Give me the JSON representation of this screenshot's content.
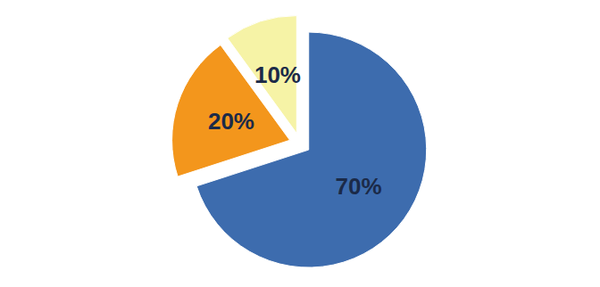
{
  "chart_data": {
    "type": "pie",
    "values": [
      70,
      20,
      10
    ],
    "value_labels": [
      "70%",
      "20%",
      "10%"
    ],
    "colors": [
      "#3d6cae",
      "#f3961c",
      "#f6f3a6"
    ],
    "data_labels": true
  }
}
